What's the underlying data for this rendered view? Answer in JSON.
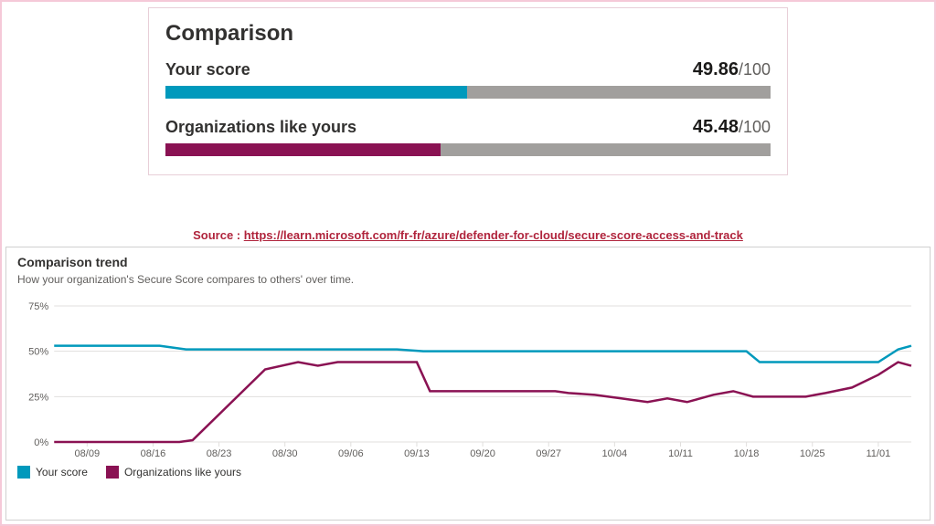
{
  "comparison": {
    "title": "Comparison",
    "rows": [
      {
        "label": "Your score",
        "value": "49.86",
        "denom": "/100",
        "percent": 49.86,
        "color": "#0099bc"
      },
      {
        "label": "Organizations like yours",
        "value": "45.48",
        "denom": "/100",
        "percent": 45.48,
        "color": "#8a1253"
      }
    ],
    "track_color": "#a19f9d"
  },
  "source": {
    "prefix": "Source : ",
    "url_text": "https://learn.microsoft.com/fr-fr/azure/defender-for-cloud/secure-score-access-and-track"
  },
  "trend": {
    "title": "Comparison trend",
    "subtitle": "How your organization's Secure Score compares to others' over time.",
    "type": "line",
    "yaxis": {
      "min": 0,
      "max": 80,
      "ticks": [
        0,
        25,
        50,
        75
      ],
      "suffix": "%"
    },
    "xaxis": {
      "labels": [
        "08/09",
        "08/16",
        "08/23",
        "08/30",
        "09/06",
        "09/13",
        "09/20",
        "09/27",
        "10/04",
        "10/11",
        "10/18",
        "10/25",
        "11/01"
      ]
    },
    "x_domain": {
      "min": 0,
      "max": 13
    },
    "grid_color": "#e1dfdd",
    "axis_text_color": "#605e5c",
    "background_color": "#ffffff",
    "series": [
      {
        "name": "Your score",
        "color": "#0099bc",
        "points": [
          [
            0,
            53
          ],
          [
            1,
            53
          ],
          [
            1.6,
            53
          ],
          [
            2,
            51
          ],
          [
            3,
            51
          ],
          [
            4,
            51
          ],
          [
            5,
            51
          ],
          [
            5.2,
            51
          ],
          [
            5.6,
            50
          ],
          [
            6,
            50
          ],
          [
            7,
            50
          ],
          [
            8,
            50
          ],
          [
            9,
            50
          ],
          [
            10,
            50
          ],
          [
            10.5,
            50
          ],
          [
            10.7,
            44
          ],
          [
            11,
            44
          ],
          [
            12,
            44
          ],
          [
            12.5,
            44
          ],
          [
            12.8,
            51
          ],
          [
            13,
            53
          ]
        ]
      },
      {
        "name": "Organizations like yours",
        "color": "#8a1253",
        "points": [
          [
            0,
            0
          ],
          [
            1,
            0
          ],
          [
            1.9,
            0
          ],
          [
            2.1,
            1
          ],
          [
            3.2,
            40
          ],
          [
            3.7,
            44
          ],
          [
            4.0,
            42
          ],
          [
            4.3,
            44
          ],
          [
            5.0,
            44
          ],
          [
            5.5,
            44
          ],
          [
            5.7,
            28
          ],
          [
            6.0,
            28
          ],
          [
            7.0,
            28
          ],
          [
            7.6,
            28
          ],
          [
            7.8,
            27
          ],
          [
            8.2,
            26
          ],
          [
            8.6,
            24
          ],
          [
            9.0,
            22
          ],
          [
            9.3,
            24
          ],
          [
            9.6,
            22
          ],
          [
            10.0,
            26
          ],
          [
            10.3,
            28
          ],
          [
            10.6,
            25
          ],
          [
            11.0,
            25
          ],
          [
            11.4,
            25
          ],
          [
            11.7,
            27
          ],
          [
            12.1,
            30
          ],
          [
            12.5,
            37
          ],
          [
            12.8,
            44
          ],
          [
            13,
            42
          ]
        ]
      }
    ],
    "legend": [
      {
        "label": "Your score",
        "color": "#0099bc"
      },
      {
        "label": "Organizations like yours",
        "color": "#8a1253"
      }
    ]
  }
}
